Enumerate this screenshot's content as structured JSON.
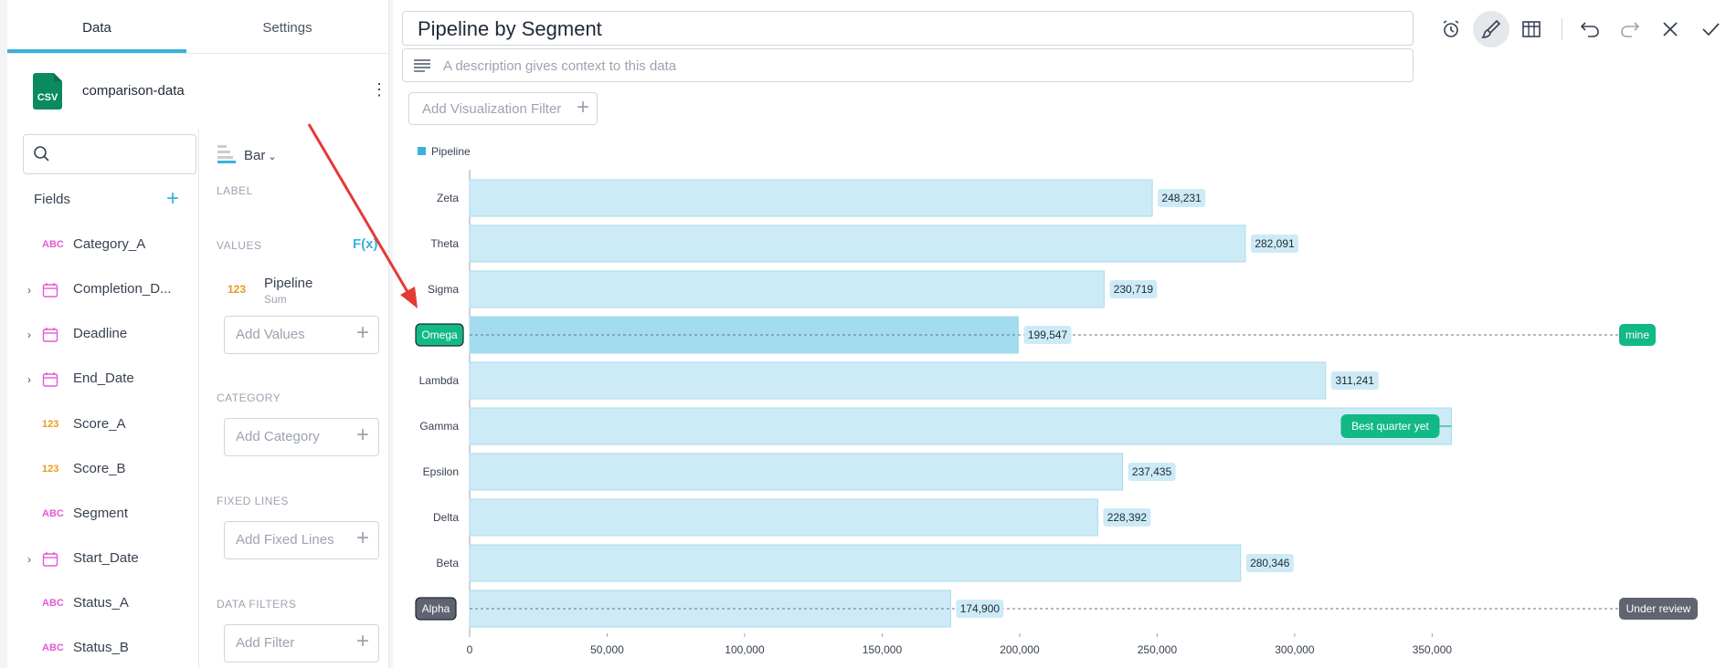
{
  "tabs": [
    {
      "label": "Data"
    },
    {
      "label": "Settings"
    }
  ],
  "datasource": {
    "icon_text": "CSV",
    "name": "comparison-data",
    "menu_glyph": "⋮"
  },
  "search": {
    "placeholder": ""
  },
  "fields_panel": {
    "title": "Fields",
    "add_glyph": "+",
    "items": [
      {
        "type": "ABC",
        "label": "Category_A"
      },
      {
        "type": "date",
        "label": "Completion_D..."
      },
      {
        "type": "date",
        "label": "Deadline"
      },
      {
        "type": "date",
        "label": "End_Date"
      },
      {
        "type": "123",
        "label": "Score_A"
      },
      {
        "type": "123",
        "label": "Score_B"
      },
      {
        "type": "ABC",
        "label": "Segment"
      },
      {
        "type": "date",
        "label": "Start_Date"
      },
      {
        "type": "ABC",
        "label": "Status_A"
      },
      {
        "type": "ABC",
        "label": "Status_B"
      }
    ]
  },
  "config": {
    "viz_type": "Bar",
    "label_section": "LABEL",
    "values_section": "VALUES",
    "fx": "F(x)",
    "value_field": {
      "type": "123",
      "name": "Pipeline",
      "agg": "Sum"
    },
    "add_values": "Add Values",
    "category_section": "CATEGORY",
    "add_category": "Add Category",
    "fixed_lines_section": "FIXED LINES",
    "add_fixed_lines": "Add Fixed Lines",
    "data_filters_section": "DATA FILTERS",
    "add_filter": "Add Filter"
  },
  "main": {
    "title": "Pipeline by Segment",
    "description_placeholder": "A description gives context to this data",
    "add_vis_filter": "Add Visualization Filter",
    "toolbar": [
      "alarm-icon",
      "brush-icon",
      "table-icon",
      "undo-icon",
      "redo-icon",
      "close-icon",
      "check-icon"
    ]
  },
  "chart_data": {
    "type": "bar",
    "orientation": "horizontal",
    "legend": [
      {
        "name": "Pipeline",
        "color": "#3ab1d9"
      }
    ],
    "categories": [
      "Zeta",
      "Theta",
      "Sigma",
      "Omega",
      "Lambda",
      "Gamma",
      "Epsilon",
      "Delta",
      "Beta",
      "Alpha"
    ],
    "series": [
      {
        "name": "Pipeline",
        "values": [
          248231,
          282091,
          230719,
          199547,
          311241,
          357000,
          237435,
          228392,
          280346,
          174900
        ]
      }
    ],
    "data_labels": [
      "248,231",
      "282,091",
      "230,719",
      "199,547",
      "311,241",
      "",
      "237,435",
      "228,392",
      "280,346",
      "174,900"
    ],
    "xlim": [
      0,
      360000
    ],
    "xticks": [
      0,
      50000,
      100000,
      150000,
      200000,
      250000,
      300000,
      350000
    ],
    "xtick_labels": [
      "0",
      "50,000",
      "100,000",
      "150,000",
      "200,000",
      "250,000",
      "300,000",
      "350,000"
    ],
    "highlights": [
      {
        "category": "Omega",
        "color": "#12b886",
        "tag": "mine"
      },
      {
        "category": "Alpha",
        "color": "#5f6470",
        "tag": "Under review"
      }
    ],
    "annotation": {
      "category": "Gamma",
      "text": "Best quarter yet",
      "color": "#12b886"
    },
    "colors": {
      "bar": "#cdebf6",
      "bar_stroke": "#a8daee",
      "bar_highlight": "#a3dcef",
      "label_bg": "#cdebf6"
    }
  }
}
